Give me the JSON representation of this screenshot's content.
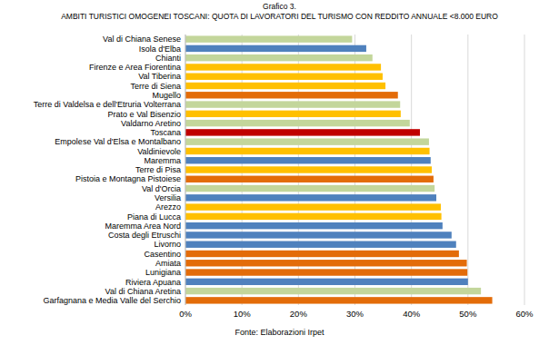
{
  "chart_data": {
    "type": "bar",
    "orientation": "horizontal",
    "title": "Grafico 3.",
    "subtitle": "AMBITI TURISTICI OMOGENEI TOSCANI: QUOTA DI LAVORATORI DEL TURISMO CON REDDITO ANNUALE <8.000 EURO",
    "annotations": [
      "Fonte: Elaborazioni Irpet"
    ],
    "categories": [
      "Val di Chiana Senese",
      "Isola d'Elba",
      "Chianti",
      "Firenze e Area Fiorentina",
      "Val Tiberina",
      "Terre di Siena",
      "Mugello",
      "Terre di Valdelsa e dell'Etruria Volterrana",
      "Prato e Val Bisenzio",
      "Valdarno Aretino",
      "Toscana",
      "Empolese Val d'Elsa e Montalbano",
      "Valdinievole",
      "Maremma",
      "Terre di Pisa",
      "Pistoia e Montagna Pistoiese",
      "Val d'Orcia",
      "Versilia",
      "Arezzo",
      "Piana di Lucca",
      "Maremma Area Nord",
      "Costa degli Etruschi",
      "Livorno",
      "Casentino",
      "Amiata",
      "Lunigiana",
      "Riviera Apuana",
      "Val di Chiana Aretina",
      "Garfagnana e Media Valle del Serchio"
    ],
    "values": [
      29.5,
      32.0,
      33.1,
      34.6,
      34.9,
      35.4,
      37.6,
      38.0,
      38.1,
      39.7,
      41.5,
      43.1,
      43.2,
      43.4,
      43.6,
      43.9,
      44.1,
      44.4,
      45.2,
      45.3,
      45.5,
      47.1,
      47.9,
      48.4,
      49.8,
      49.9,
      50.0,
      52.3,
      54.3
    ],
    "colors": [
      "#c3d69b",
      "#4f81bd",
      "#c3d69b",
      "#ffc000",
      "#ffc000",
      "#ffc000",
      "#e36c09",
      "#c3d69b",
      "#ffc000",
      "#c3d69b",
      "#c00000",
      "#c3d69b",
      "#ffc000",
      "#4f81bd",
      "#ffc000",
      "#e36c09",
      "#c3d69b",
      "#4f81bd",
      "#ffc000",
      "#ffc000",
      "#4f81bd",
      "#4f81bd",
      "#4f81bd",
      "#e36c09",
      "#e36c09",
      "#e36c09",
      "#4f81bd",
      "#c3d69b",
      "#e36c09"
    ],
    "xlim": [
      0,
      60
    ],
    "xticks": [
      {
        "value": 0,
        "label": "0%"
      },
      {
        "value": 10,
        "label": "10%"
      },
      {
        "value": 20,
        "label": "20%"
      },
      {
        "value": 30,
        "label": "30%"
      },
      {
        "value": 40,
        "label": "40%"
      },
      {
        "value": 50,
        "label": "50%"
      },
      {
        "value": 60,
        "label": "60%"
      }
    ],
    "grid": true,
    "data_labels": false
  }
}
